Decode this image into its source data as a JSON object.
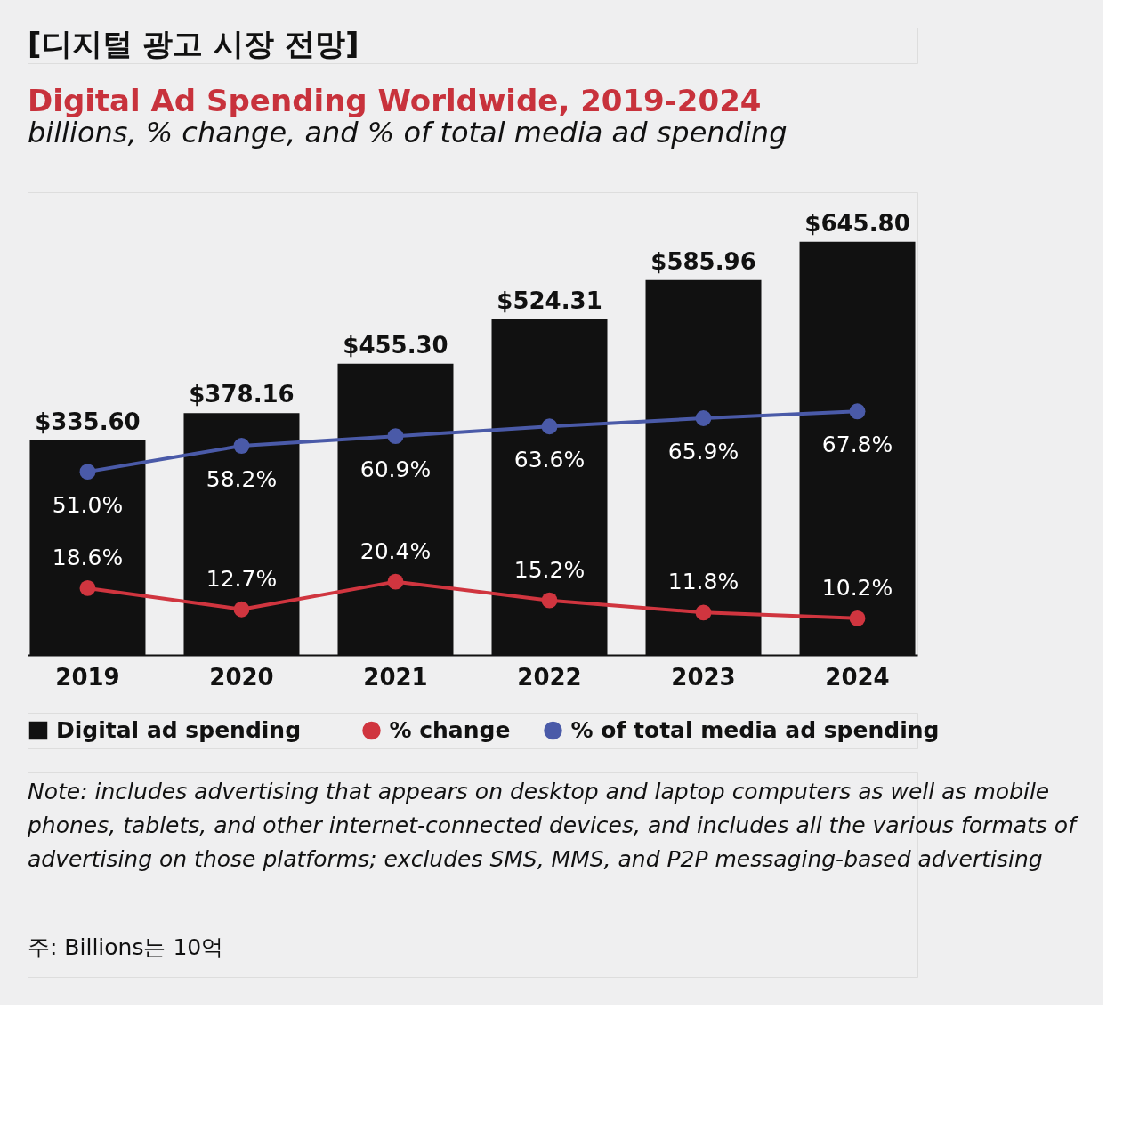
{
  "chart_data": {
    "type": "bar",
    "title": "Digital Ad Spending Worldwide, 2019-2024",
    "subtitle": "billions, % change, and % of total media ad spending",
    "categories": [
      "2019",
      "2020",
      "2021",
      "2022",
      "2023",
      "2024"
    ],
    "series": [
      {
        "name": "Digital ad spending",
        "color": "#111111",
        "values": [
          335.6,
          378.16,
          455.3,
          524.31,
          585.96,
          645.8
        ],
        "value_labels": [
          "$335.60",
          "$378.16",
          "$455.30",
          "$524.31",
          "$585.96",
          "$645.80"
        ]
      },
      {
        "name": "% change",
        "type": "line",
        "axis": "y2",
        "color": "#d0353f",
        "values": [
          18.6,
          12.7,
          20.4,
          15.2,
          11.8,
          10.2
        ],
        "value_labels": [
          "18.6%",
          "12.7%",
          "20.4%",
          "15.2%",
          "11.8%",
          "10.2%"
        ]
      },
      {
        "name": "% of total media ad spending",
        "type": "line",
        "axis": "y2",
        "color": "#4a5aa8",
        "values": [
          51.0,
          58.2,
          60.9,
          63.6,
          65.9,
          67.8
        ],
        "value_labels": [
          "51.0%",
          "58.2%",
          "60.9%",
          "63.6%",
          "65.9%",
          "67.8%"
        ]
      }
    ],
    "tick_labels": "x",
    "grid": false,
    "legend": "bottom",
    "marker": "circle",
    "annotations": [
      "[디지털 광고 시장 전망]",
      "Note: includes advertising that appears on desktop and laptop computers as well as mobile phones, tablets, and other internet-connected devices, and includes all the various formats of advertising on those platforms; excludes SMS, MMS, and P2P messaging-based advertising",
      "주: Billions는 10억"
    ]
  }
}
